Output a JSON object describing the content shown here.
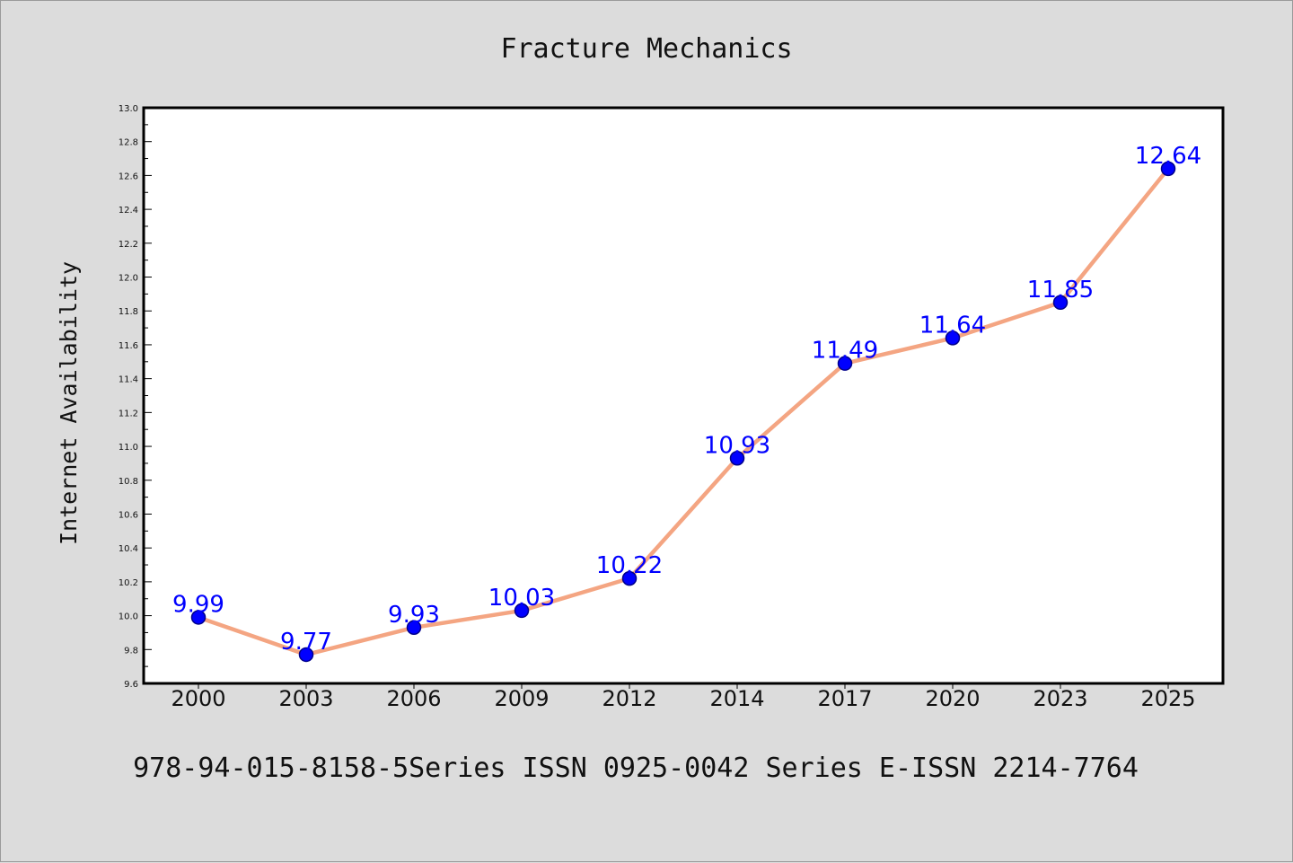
{
  "chart_data": {
    "type": "line",
    "title": "Fracture Mechanics",
    "xlabel": "",
    "ylabel": "Internet Availability",
    "categories": [
      "2000",
      "2003",
      "2006",
      "2009",
      "2012",
      "2014",
      "2017",
      "2020",
      "2023",
      "2025"
    ],
    "series": [
      {
        "values": [
          9.99,
          9.77,
          9.93,
          10.03,
          10.22,
          10.93,
          11.49,
          11.64,
          11.85,
          12.64
        ]
      }
    ],
    "data_labels": [
      "9.99",
      "9.77",
      "9.93",
      "10.03",
      "10.22",
      "10.93",
      "11.49",
      "11.64",
      "11.85",
      "12.64"
    ],
    "ylim": [
      9.6,
      13.0
    ],
    "yticks": [
      "9.6",
      "9.8",
      "10.0",
      "10.2",
      "10.4",
      "10.6",
      "10.8",
      "11.0",
      "11.2",
      "11.4",
      "11.6",
      "11.8",
      "12.0",
      "12.2",
      "12.4",
      "12.6",
      "12.8",
      "13.0"
    ],
    "grid": false,
    "legend": "none",
    "colors": {
      "line": "#f4a582",
      "marker": "#0000ff",
      "marker_edge": "#00008b",
      "labels": "#0000ff",
      "background": "#dcdcdc",
      "plot_area": "#ffffff"
    }
  },
  "footer_text": "978-94-015-8158-5Series ISSN 0925-0042 Series E-ISSN 2214-7764"
}
